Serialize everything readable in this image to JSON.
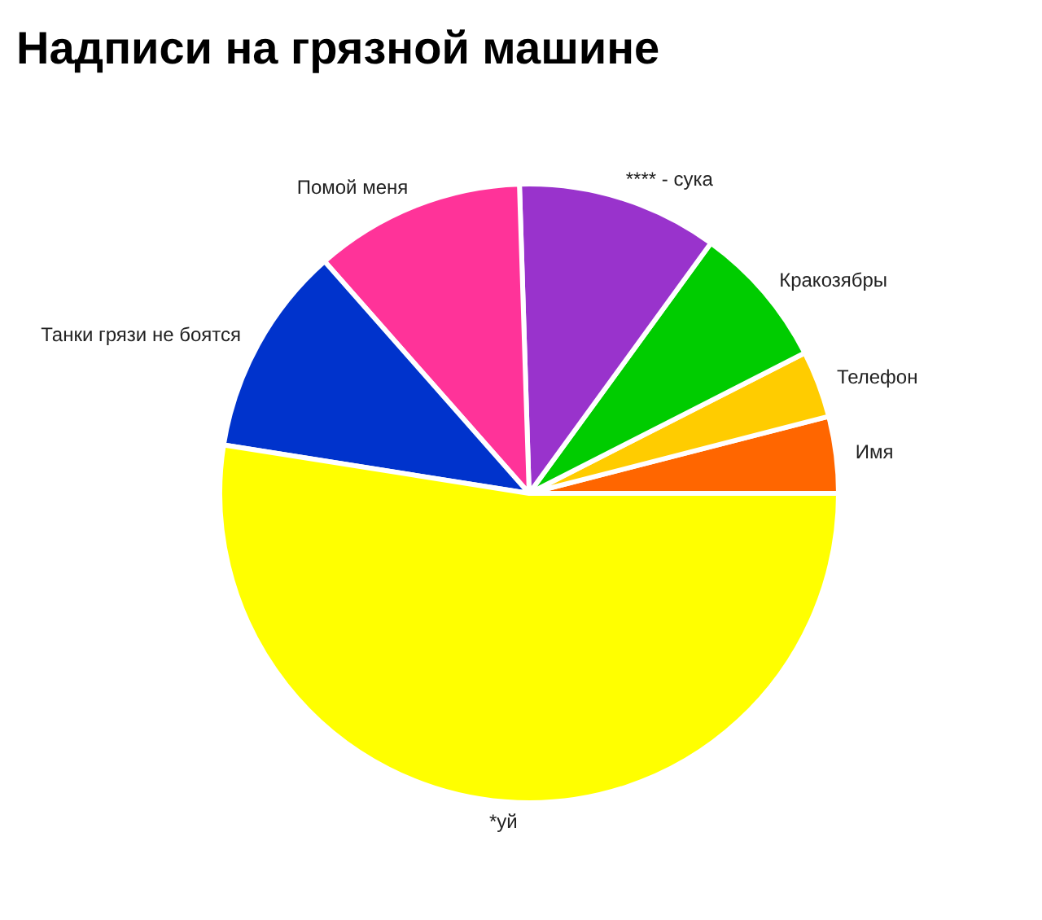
{
  "chart_data": {
    "type": "pie",
    "title": "Надписи на грязной машине",
    "categories": [
      "Имя",
      "Телефон",
      "Кракозябры",
      "**** - сука",
      "Помой меня",
      "Танки грязи не боятся",
      "*уй"
    ],
    "values": [
      4,
      3.5,
      7.5,
      10.5,
      11,
      11,
      52.5
    ],
    "colors": [
      "#ff6600",
      "#ffcc00",
      "#00cc00",
      "#9933cc",
      "#ff3399",
      "#0033cc",
      "#ffff00"
    ]
  }
}
